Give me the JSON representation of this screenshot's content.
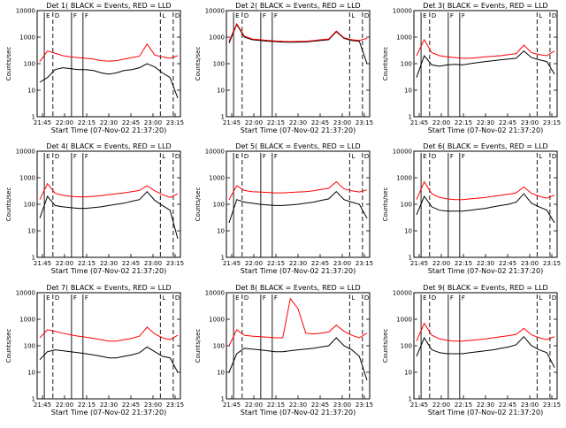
{
  "colors": {
    "events": "#000000",
    "lld": "#ff0000",
    "background": "#ffffff"
  },
  "chart_data": [
    {
      "type": "line",
      "title": "Det  1(  BLACK = Events, RED = LLD",
      "ylabel": "Counts/sec",
      "xlabel": "Start Time (07-Nov-02 21:37:20)",
      "y_scale": "log",
      "ylim": [
        1,
        10000
      ],
      "x_tick_labels": [
        "21:45",
        "22:00",
        "22:15",
        "22:30",
        "22:45",
        "23:00",
        "23:15"
      ],
      "y_tick_labels": [
        "1",
        "10",
        "100",
        "1000",
        "10000"
      ],
      "markers": [
        "E",
        "D",
        "F",
        "F",
        "L",
        "D"
      ],
      "series": [
        {
          "name": "Events",
          "color": "#000000",
          "values": [
            20,
            30,
            60,
            70,
            65,
            60,
            60,
            55,
            45,
            40,
            45,
            55,
            60,
            70,
            100,
            75,
            45,
            30,
            5
          ]
        },
        {
          "name": "LLD",
          "color": "#ff0000",
          "values": [
            120,
            300,
            250,
            200,
            180,
            170,
            160,
            150,
            130,
            125,
            130,
            150,
            170,
            190,
            550,
            210,
            180,
            160,
            200
          ]
        }
      ]
    },
    {
      "type": "line",
      "title": "Det  2(  BLACK = Events, RED = LLD",
      "ylabel": "Counts/sec",
      "xlabel": "Start Time (07-Nov-02 21:37:20)",
      "y_scale": "log",
      "ylim": [
        1,
        10000
      ],
      "x_tick_labels": [
        "21:45",
        "22:00",
        "22:15",
        "22:30",
        "22:45",
        "23:00",
        "23:15"
      ],
      "y_tick_labels": [
        "1",
        "10",
        "100",
        "1000",
        "10000"
      ],
      "markers": [
        "E",
        "D",
        "F",
        "F",
        "L",
        "D"
      ],
      "series": [
        {
          "name": "Events",
          "color": "#000000",
          "values": [
            600,
            3000,
            1000,
            800,
            750,
            700,
            680,
            650,
            640,
            650,
            660,
            700,
            750,
            800,
            1600,
            900,
            750,
            700,
            100
          ]
        },
        {
          "name": "LLD",
          "color": "#ff0000",
          "values": [
            700,
            3200,
            1100,
            850,
            800,
            760,
            720,
            690,
            680,
            690,
            700,
            740,
            800,
            850,
            1700,
            950,
            800,
            750,
            900
          ]
        }
      ]
    },
    {
      "type": "line",
      "title": "Det  3(  BLACK = Events, RED = LLD",
      "ylabel": "Counts/sec",
      "xlabel": "Start Time (07-Nov-02 21:37:20)",
      "y_scale": "log",
      "ylim": [
        1,
        10000
      ],
      "x_tick_labels": [
        "21:45",
        "22:00",
        "22:15",
        "22:30",
        "22:45",
        "23:00",
        "23:15"
      ],
      "y_tick_labels": [
        "1",
        "10",
        "100",
        "1000",
        "10000"
      ],
      "markers": [
        "E",
        "D",
        "F",
        "F",
        "L",
        "D"
      ],
      "series": [
        {
          "name": "Events",
          "color": "#000000",
          "values": [
            30,
            200,
            90,
            80,
            90,
            95,
            90,
            100,
            110,
            120,
            130,
            140,
            150,
            160,
            300,
            170,
            140,
            120,
            40
          ]
        },
        {
          "name": "LLD",
          "color": "#ff0000",
          "values": [
            200,
            800,
            260,
            200,
            180,
            170,
            160,
            160,
            170,
            180,
            190,
            200,
            220,
            240,
            500,
            260,
            220,
            200,
            300
          ]
        }
      ]
    },
    {
      "type": "line",
      "title": "Det  4(  BLACK = Events, RED = LLD",
      "ylabel": "Counts/sec",
      "xlabel": "Start Time (07-Nov-02 21:37:20)",
      "y_scale": "log",
      "ylim": [
        1,
        10000
      ],
      "x_tick_labels": [
        "21:45",
        "22:00",
        "22:15",
        "22:30",
        "22:45",
        "23:00",
        "23:15"
      ],
      "y_tick_labels": [
        "1",
        "10",
        "100",
        "1000",
        "10000"
      ],
      "markers": [
        "E",
        "D",
        "F",
        "F",
        "L",
        "D"
      ],
      "series": [
        {
          "name": "Events",
          "color": "#000000",
          "values": [
            30,
            200,
            90,
            80,
            75,
            70,
            70,
            75,
            80,
            90,
            100,
            110,
            130,
            150,
            300,
            140,
            90,
            60,
            5
          ]
        },
        {
          "name": "LLD",
          "color": "#ff0000",
          "values": [
            150,
            600,
            260,
            220,
            200,
            190,
            190,
            200,
            210,
            230,
            250,
            270,
            300,
            330,
            500,
            320,
            230,
            180,
            250
          ]
        }
      ]
    },
    {
      "type": "line",
      "title": "Det  5(  BLACK = Events, RED = LLD",
      "ylabel": "Counts/sec",
      "xlabel": "Start Time (07-Nov-02 21:37:20)",
      "y_scale": "log",
      "ylim": [
        1,
        10000
      ],
      "x_tick_labels": [
        "21:45",
        "22:00",
        "22:15",
        "22:30",
        "22:45",
        "23:00",
        "23:15"
      ],
      "y_tick_labels": [
        "1",
        "10",
        "100",
        "1000",
        "10000"
      ],
      "markers": [
        "E",
        "D",
        "F",
        "F",
        "L",
        "D"
      ],
      "series": [
        {
          "name": "Events",
          "color": "#000000",
          "values": [
            20,
            150,
            120,
            110,
            100,
            95,
            90,
            90,
            95,
            100,
            110,
            120,
            140,
            160,
            300,
            150,
            120,
            100,
            30
          ]
        },
        {
          "name": "LLD",
          "color": "#ff0000",
          "values": [
            150,
            500,
            330,
            300,
            290,
            280,
            270,
            270,
            280,
            290,
            300,
            320,
            360,
            400,
            700,
            380,
            320,
            290,
            350
          ]
        }
      ]
    },
    {
      "type": "line",
      "title": "Det  6(  BLACK = Events, RED = LLD",
      "ylabel": "Counts/sec",
      "xlabel": "Start Time (07-Nov-02 21:37:20)",
      "y_scale": "log",
      "ylim": [
        1,
        10000
      ],
      "x_tick_labels": [
        "21:45",
        "22:00",
        "22:15",
        "22:30",
        "22:45",
        "23:00",
        "23:15"
      ],
      "y_tick_labels": [
        "1",
        "10",
        "100",
        "1000",
        "10000"
      ],
      "markers": [
        "E",
        "D",
        "F",
        "F",
        "L",
        "D"
      ],
      "series": [
        {
          "name": "Events",
          "color": "#000000",
          "values": [
            40,
            200,
            80,
            60,
            55,
            55,
            55,
            60,
            65,
            70,
            80,
            90,
            100,
            120,
            250,
            110,
            80,
            60,
            20
          ]
        },
        {
          "name": "LLD",
          "color": "#ff0000",
          "values": [
            150,
            700,
            250,
            180,
            160,
            150,
            150,
            160,
            170,
            180,
            200,
            220,
            240,
            270,
            450,
            260,
            200,
            170,
            220
          ]
        }
      ]
    },
    {
      "type": "line",
      "title": "Det  7(  BLACK = Events, RED = LLD",
      "ylabel": "Counts/sec",
      "xlabel": "Start Time (07-Nov-02 21:37:20)",
      "y_scale": "log",
      "ylim": [
        1,
        10000
      ],
      "x_tick_labels": [
        "21:45",
        "22:00",
        "22:15",
        "22:30",
        "22:45",
        "23:00",
        "23:15"
      ],
      "y_tick_labels": [
        "1",
        "10",
        "100",
        "1000",
        "10000"
      ],
      "markers": [
        "E",
        "D",
        "F",
        "F",
        "L",
        "D"
      ],
      "series": [
        {
          "name": "Events",
          "color": "#000000",
          "values": [
            30,
            60,
            70,
            65,
            60,
            55,
            50,
            45,
            40,
            35,
            35,
            40,
            45,
            55,
            90,
            60,
            40,
            35,
            10
          ]
        },
        {
          "name": "LLD",
          "color": "#ff0000",
          "values": [
            200,
            400,
            350,
            300,
            260,
            230,
            210,
            190,
            170,
            150,
            150,
            170,
            190,
            230,
            500,
            280,
            200,
            170,
            250
          ]
        }
      ]
    },
    {
      "type": "line",
      "title": "Det  8(  BLACK = Events, RED = LLD",
      "ylabel": "Counts/sec",
      "xlabel": "Start Time (07-Nov-02 21:37:20)",
      "y_scale": "log",
      "ylim": [
        1,
        10000
      ],
      "x_tick_labels": [
        "21:45",
        "22:00",
        "22:15",
        "22:30",
        "22:45",
        "23:00",
        "23:15"
      ],
      "y_tick_labels": [
        "1",
        "10",
        "100",
        "1000",
        "10000"
      ],
      "markers": [
        "E",
        "D",
        "F",
        "F",
        "L",
        "D"
      ],
      "series": [
        {
          "name": "Events",
          "color": "#000000",
          "values": [
            10,
            50,
            80,
            75,
            70,
            65,
            60,
            60,
            65,
            70,
            75,
            80,
            90,
            100,
            200,
            100,
            70,
            40,
            5
          ]
        },
        {
          "name": "LLD",
          "color": "#ff0000",
          "values": [
            100,
            400,
            250,
            230,
            220,
            210,
            200,
            200,
            6000,
            2500,
            300,
            280,
            300,
            330,
            600,
            350,
            250,
            200,
            300
          ]
        }
      ]
    },
    {
      "type": "line",
      "title": "Det  9(  BLACK = Events, RED = LLD",
      "ylabel": "Counts/sec",
      "xlabel": "Start Time (07-Nov-02 21:37:20)",
      "y_scale": "log",
      "ylim": [
        1,
        10000
      ],
      "x_tick_labels": [
        "21:45",
        "22:00",
        "22:15",
        "22:30",
        "22:45",
        "23:00",
        "23:15"
      ],
      "y_tick_labels": [
        "1",
        "10",
        "100",
        "1000",
        "10000"
      ],
      "markers": [
        "E",
        "D",
        "F",
        "F",
        "L",
        "D"
      ],
      "series": [
        {
          "name": "Events",
          "color": "#000000",
          "values": [
            40,
            200,
            70,
            55,
            50,
            50,
            50,
            55,
            60,
            65,
            70,
            80,
            90,
            110,
            220,
            100,
            70,
            55,
            15
          ]
        },
        {
          "name": "LLD",
          "color": "#ff0000",
          "values": [
            150,
            700,
            250,
            180,
            160,
            150,
            150,
            160,
            170,
            180,
            200,
            220,
            240,
            270,
            450,
            260,
            200,
            170,
            220
          ]
        }
      ]
    }
  ]
}
